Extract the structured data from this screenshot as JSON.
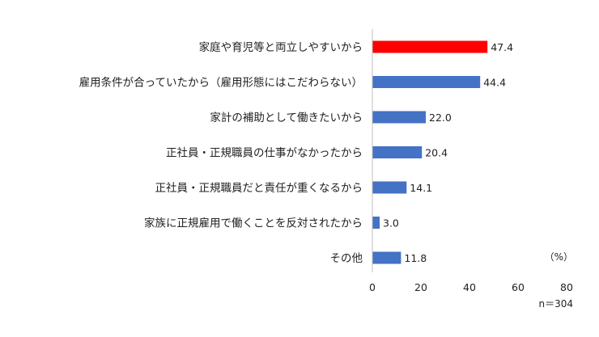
{
  "chart_data": {
    "type": "bar",
    "orientation": "horizontal",
    "categories": [
      "家庭や育児等と両立しやすいから",
      "雇用条件が合っていたから（雇用形態にはこだわらない）",
      "家計の補助として働きたいから",
      "正社員・正規職員の仕事がなかったから",
      "正社員・正規職員だと責任が重くなるから",
      "家族に正規雇用で働くことを反対されたから",
      "その他"
    ],
    "values": [
      47.4,
      44.4,
      22.0,
      20.4,
      14.1,
      3.0,
      11.8
    ],
    "value_labels": [
      "47.4",
      "44.4",
      "22.0",
      "20.4",
      "14.1",
      "3.0",
      "11.8"
    ],
    "highlight_index": 0,
    "xlim": [
      0,
      80
    ],
    "xticks": [
      "0",
      "20",
      "40",
      "60",
      "80"
    ],
    "unit_label": "（%）",
    "sample_note": "n＝304",
    "grid": false,
    "colors": {
      "bar": "#4472c4",
      "highlight": "#ff0000",
      "axis": "#bfbfbf"
    }
  }
}
